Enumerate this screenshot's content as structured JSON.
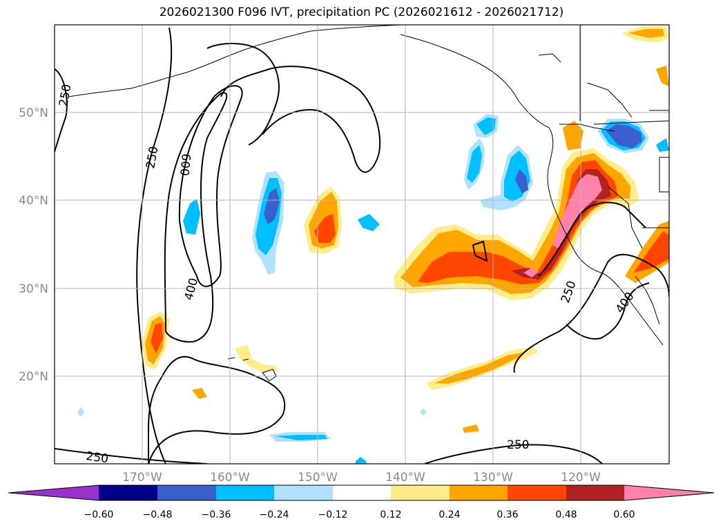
{
  "title": "2026021300 F096 IVT, precipitation PC (2026021612 - 2026021712)",
  "map": {
    "lon_range": [
      -180,
      -110
    ],
    "lat_range": [
      10,
      60
    ],
    "lon_ticks": [
      {
        "lon": -170,
        "label": "170°W"
      },
      {
        "lon": -160,
        "label": "160°W"
      },
      {
        "lon": -150,
        "label": "150°W"
      },
      {
        "lon": -140,
        "label": "140°W"
      },
      {
        "lon": -130,
        "label": "130°W"
      },
      {
        "lon": -120,
        "label": "120°W"
      }
    ],
    "lat_ticks": [
      {
        "lat": 20,
        "label": "20°N"
      },
      {
        "lat": 30,
        "label": "30°N"
      },
      {
        "lat": 40,
        "label": "40°N"
      },
      {
        "lat": 50,
        "label": "50°N"
      }
    ],
    "contour_labels": [
      "250",
      "250",
      "600",
      "400",
      "250",
      "250",
      "400",
      "250"
    ]
  },
  "colorbar": {
    "levels": [
      "−0.60",
      "−0.48",
      "−0.36",
      "−0.24",
      "−0.12",
      "0.12",
      "0.24",
      "0.36",
      "0.48",
      "0.60"
    ],
    "colors": [
      "#9932cc",
      "#00008b",
      "#3a5fcd",
      "#00bfff",
      "#b0e2ff",
      "#ffffff",
      "#ffec8b",
      "#ffa500",
      "#ff4500",
      "#b22222",
      "#ff82ab"
    ]
  }
}
